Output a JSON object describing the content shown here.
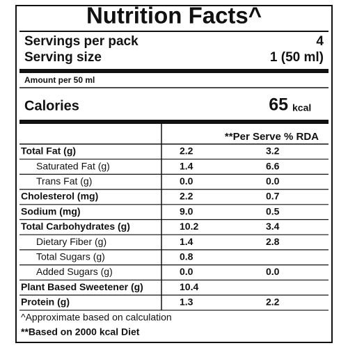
{
  "label": {
    "title": "Nutrition Facts^",
    "servings_label": "Servings per pack",
    "servings_value": "4",
    "serving_size_label": "Serving size",
    "serving_size_value": "1 (50 ml)",
    "amount_per": "Amount per 50 ml",
    "calories_label": "Calories",
    "calories_value": "65",
    "calories_unit": "kcal",
    "column_header": "**Per Serve % RDA",
    "rows": [
      {
        "name": "Total Fat (g)",
        "indent": false,
        "value": "2.2",
        "rda": "3.2"
      },
      {
        "name": "Saturated Fat (g)",
        "indent": true,
        "value": "1.4",
        "rda": "6.6"
      },
      {
        "name": "Trans Fat (g)",
        "indent": true,
        "value": "0.0",
        "rda": "0.0"
      },
      {
        "name": "Cholesterol (mg)",
        "indent": false,
        "value": "2.2",
        "rda": "0.7"
      },
      {
        "name": "Sodium (mg)",
        "indent": false,
        "value": "9.0",
        "rda": "0.5"
      },
      {
        "name": "Total Carbohydrates (g)",
        "indent": false,
        "value": "10.2",
        "rda": "3.4"
      },
      {
        "name": "Dietary Fiber (g)",
        "indent": true,
        "value": "1.4",
        "rda": "2.8"
      },
      {
        "name": "Total Sugars (g)",
        "indent": true,
        "value": "0.8"
      },
      {
        "name": "Added Sugars (g)",
        "indent": true,
        "value": "0.0",
        "rda": "0.0"
      },
      {
        "name": "Plant Based Sweetener (g)",
        "indent": false,
        "value": "10.4"
      },
      {
        "name": "Protein (g)",
        "indent": false,
        "value": "1.3",
        "rda": "2.2"
      }
    ],
    "footnotes": [
      "^Approximate based on calculation",
      "**Based on 2000 kcal Diet"
    ]
  }
}
